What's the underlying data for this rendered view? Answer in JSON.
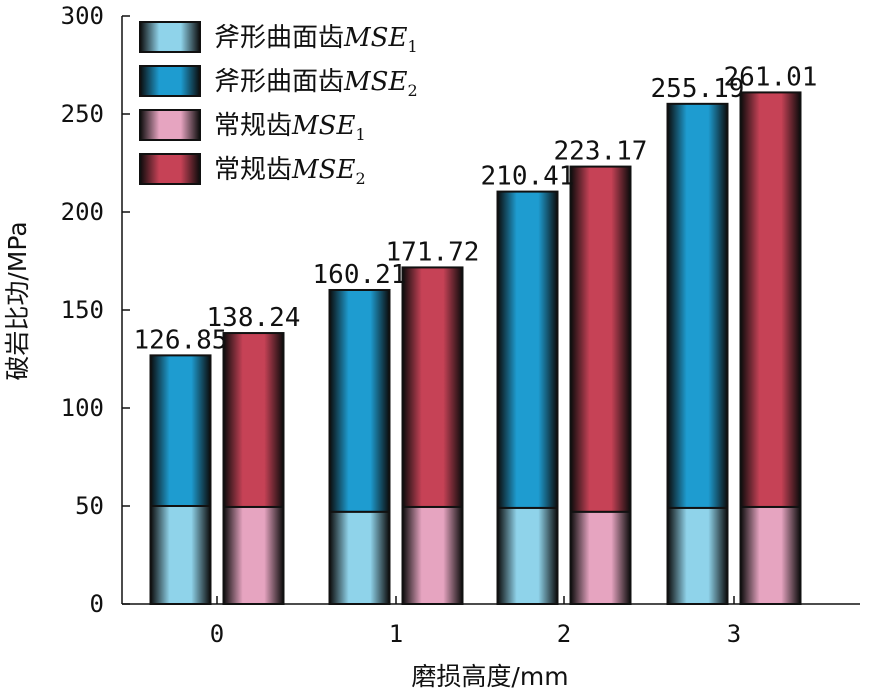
{
  "chart_data": {
    "type": "bar",
    "stacked": true,
    "title": "",
    "xlabel": "磨损高度/mm",
    "ylabel": "破岩比功/MPa",
    "ylim": [
      0,
      300
    ],
    "yticks": [
      0,
      50,
      100,
      150,
      200,
      250,
      300
    ],
    "categories": [
      "0",
      "1",
      "2",
      "3"
    ],
    "groups": [
      {
        "name": "斧形曲面齿",
        "legend_text": "斧形曲面齿",
        "mse1_values": [
          50,
          47,
          49,
          49
        ],
        "total_values": [
          126.85,
          160.21,
          210.41,
          255.19
        ],
        "data_labels": [
          "126.85",
          "160.21",
          "210.41",
          "255.19"
        ]
      },
      {
        "name": "常规齿",
        "legend_text": "常规齿",
        "mse1_values": [
          49.5,
          49.5,
          47,
          49.5
        ],
        "total_values": [
          138.24,
          171.72,
          223.17,
          261.01
        ],
        "data_labels": [
          "138.24",
          "171.72",
          "223.17",
          "261.01"
        ]
      }
    ],
    "legend": [
      {
        "prefix": "斧形曲面齿",
        "mse": "MSE",
        "sub": "1",
        "color": "#8fd3ea"
      },
      {
        "prefix": "斧形曲面齿",
        "mse": "MSE",
        "sub": "2",
        "color": "#1e9cd0"
      },
      {
        "prefix": "常规齿",
        "mse": "MSE",
        "sub": "1",
        "color": "#e6a4c0"
      },
      {
        "prefix": "常规齿",
        "mse": "MSE",
        "sub": "2",
        "color": "#c64256"
      }
    ],
    "legend_position": "top-left",
    "grid": false,
    "colors": {
      "axe_mse1": "#8fd3ea",
      "axe_mse2": "#1e9cd0",
      "conv_mse1": "#e6a4c0",
      "conv_mse2": "#c64256"
    }
  }
}
